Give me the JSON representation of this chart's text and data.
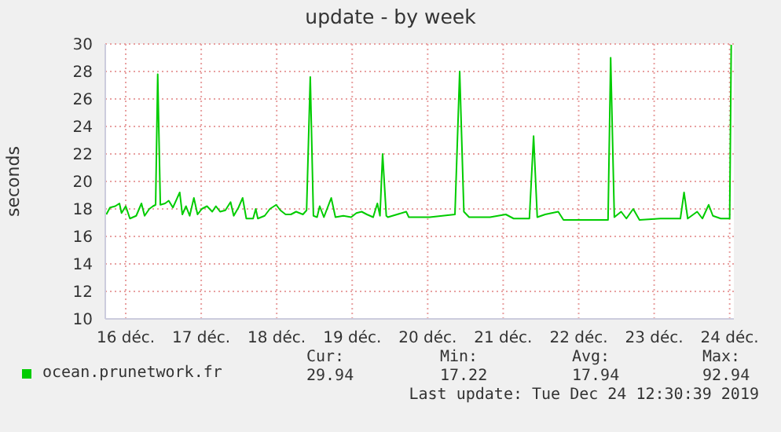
{
  "chart_data": {
    "type": "line",
    "title": "update - by week",
    "ylabel": "seconds",
    "x": [
      "2019-12-16T05:50",
      "2019-12-16T07:00",
      "2019-12-16T08:40",
      "2019-12-16T10:00",
      "2019-12-16T10:40",
      "2019-12-16T12:00",
      "2019-12-16T13:20",
      "2019-12-16T15:20",
      "2019-12-16T17:00",
      "2019-12-16T18:00",
      "2019-12-16T19:30",
      "2019-12-16T20:40",
      "2019-12-16T21:30",
      "2019-12-16T22:10",
      "2019-12-16T23:00",
      "2019-12-17T00:30",
      "2019-12-17T01:40",
      "2019-12-17T03:00",
      "2019-12-17T05:10",
      "2019-12-17T06:00",
      "2019-12-17T07:10",
      "2019-12-17T08:20",
      "2019-12-17T09:40",
      "2019-12-17T10:50",
      "2019-12-17T12:10",
      "2019-12-17T13:50",
      "2019-12-17T15:30",
      "2019-12-17T16:40",
      "2019-12-17T18:00",
      "2019-12-17T19:40",
      "2019-12-17T21:20",
      "2019-12-17T22:20",
      "2019-12-17T23:50",
      "2019-12-18T01:10",
      "2019-12-18T02:20",
      "2019-12-18T04:30",
      "2019-12-18T05:20",
      "2019-12-18T06:00",
      "2019-12-18T08:10",
      "2019-12-18T09:50",
      "2019-12-18T11:50",
      "2019-12-18T13:10",
      "2019-12-18T14:50",
      "2019-12-18T16:30",
      "2019-12-18T18:10",
      "2019-12-18T20:20",
      "2019-12-18T21:30",
      "2019-12-18T22:40",
      "2019-12-18T23:40",
      "2019-12-19T00:50",
      "2019-12-19T01:40",
      "2019-12-19T03:00",
      "2019-12-19T05:20",
      "2019-12-19T06:40",
      "2019-12-19T09:10",
      "2019-12-19T11:40",
      "2019-12-19T13:20",
      "2019-12-19T15:00",
      "2019-12-19T16:40",
      "2019-12-19T18:40",
      "2019-12-19T20:00",
      "2019-12-19T20:50",
      "2019-12-19T21:40",
      "2019-12-19T22:50",
      "2019-12-19T23:20",
      "2019-12-20T05:10",
      "2019-12-20T06:00",
      "2019-12-20T12:40",
      "2019-12-20T20:40",
      "2019-12-20T22:10",
      "2019-12-20T23:30",
      "2019-12-21T01:10",
      "2019-12-21T07:50",
      "2019-12-21T12:50",
      "2019-12-21T15:20",
      "2019-12-21T20:20",
      "2019-12-21T21:40",
      "2019-12-21T22:50",
      "2019-12-22T01:20",
      "2019-12-22T05:30",
      "2019-12-22T07:10",
      "2019-12-22T21:20",
      "2019-12-22T22:10",
      "2019-12-22T23:20",
      "2019-12-23T01:30",
      "2019-12-23T03:10",
      "2019-12-23T05:20",
      "2019-12-23T07:20",
      "2019-12-23T14:00",
      "2019-12-23T20:20",
      "2019-12-23T21:30",
      "2019-12-23T22:40",
      "2019-12-24T01:40",
      "2019-12-24T03:20",
      "2019-12-24T05:20",
      "2019-12-24T06:40",
      "2019-12-24T09:10",
      "2019-12-24T12:00",
      "2019-12-24T12:30"
    ],
    "series": [
      {
        "name": "ocean.prunetwork.fr",
        "color": "#00cc00",
        "values": [
          17.6,
          18.1,
          18.2,
          18.4,
          17.7,
          18.2,
          17.3,
          17.5,
          18.4,
          17.5,
          18.0,
          18.2,
          18.3,
          27.8,
          18.3,
          18.4,
          18.6,
          18.1,
          19.2,
          17.6,
          18.2,
          17.5,
          18.8,
          17.6,
          18.0,
          18.2,
          17.8,
          18.2,
          17.8,
          17.9,
          18.5,
          17.5,
          18.1,
          18.8,
          17.3,
          17.3,
          18.0,
          17.3,
          17.5,
          18.0,
          18.3,
          17.9,
          17.6,
          17.6,
          17.8,
          17.6,
          17.9,
          27.6,
          17.5,
          17.4,
          18.2,
          17.4,
          18.8,
          17.4,
          17.5,
          17.4,
          17.7,
          17.8,
          17.6,
          17.4,
          18.4,
          17.5,
          22.0,
          17.5,
          17.4,
          17.8,
          17.4,
          17.4,
          17.6,
          28.0,
          17.8,
          17.4,
          17.4,
          17.6,
          17.3,
          17.3,
          23.3,
          17.4,
          17.6,
          17.8,
          17.2,
          17.2,
          29.0,
          17.4,
          17.8,
          17.3,
          18.0,
          17.2,
          17.3,
          17.3,
          19.2,
          17.3,
          17.8,
          17.3,
          18.3,
          17.5,
          17.3,
          17.3,
          29.94
        ]
      }
    ],
    "xlim": [
      "2019-12-16T05:30",
      "2019-12-24T13:20"
    ],
    "xticks": [
      {
        "value": "2019-12-16T12:00",
        "label": "16 déc."
      },
      {
        "value": "2019-12-17T12:00",
        "label": "17 déc."
      },
      {
        "value": "2019-12-18T12:00",
        "label": "18 déc."
      },
      {
        "value": "2019-12-19T12:00",
        "label": "19 déc."
      },
      {
        "value": "2019-12-20T12:00",
        "label": "20 déc."
      },
      {
        "value": "2019-12-21T12:00",
        "label": "21 déc."
      },
      {
        "value": "2019-12-22T12:00",
        "label": "22 déc."
      },
      {
        "value": "2019-12-23T12:00",
        "label": "23 déc."
      },
      {
        "value": "2019-12-24T12:00",
        "label": "24 déc."
      }
    ],
    "ylim": [
      10,
      30
    ],
    "yticks": [
      10,
      12,
      14,
      16,
      18,
      20,
      22,
      24,
      26,
      28,
      30
    ],
    "grid": true,
    "legend": "bottom",
    "marker": "none",
    "line_style": "solid",
    "annotations": [
      "Cur:",
      "Min:",
      "Avg:",
      "Max:",
      "29.94",
      "17.22",
      "17.94",
      "92.94",
      "Last update: Tue Dec 24 12:30:39 2019"
    ]
  }
}
